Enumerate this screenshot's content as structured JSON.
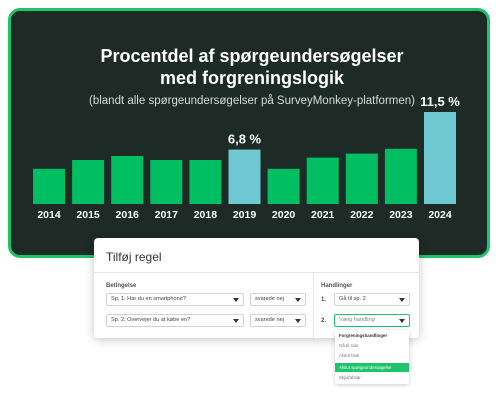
{
  "chart_data": {
    "type": "bar",
    "title_line1": "Procentdel af spørgeundersøgelser",
    "title_line2": "med forgreningslogik",
    "subtitle": "(blandt alle spørgeundersøgelser på SurveyMonkey-platformen)",
    "categories": [
      "2014",
      "2015",
      "2016",
      "2017",
      "2018",
      "2019",
      "2020",
      "2021",
      "2022",
      "2023",
      "2024"
    ],
    "values": [
      4.4,
      5.5,
      6.0,
      5.5,
      5.5,
      6.8,
      4.4,
      5.8,
      6.3,
      6.9,
      11.5
    ],
    "highlighted": [
      false,
      false,
      false,
      false,
      false,
      true,
      false,
      false,
      false,
      false,
      true
    ],
    "data_labels": {
      "2019": "6,8 %",
      "2024": "11,5 %"
    },
    "ylim": [
      0,
      12.5
    ],
    "grid": false,
    "colors": {
      "bar": "#00bf63",
      "highlight": "#6fc9d3",
      "background": "#1e2a26",
      "border": "#1ec36a"
    }
  },
  "rule_panel": {
    "title": "Tilføj regel",
    "conditions_label": "Betingelse",
    "actions_label": "Handlinger",
    "conditions": [
      {
        "question": "Sp. 1. Har du en smartphone?",
        "answer": "svarede nej"
      },
      {
        "question": "Sp. 2. Overvejer du at købe en?",
        "answer": "svarede nej"
      }
    ],
    "actions": [
      {
        "num": "1.",
        "value": "Gå til sp. 2"
      },
      {
        "num": "2.",
        "value": "Vælg handling"
      }
    ],
    "dropdown": {
      "header": "Forgreningshandlinger",
      "items": [
        "Gå til side",
        "Afslut blok",
        "Afslut spørgeundersøgelse",
        "Skjul/afslør"
      ],
      "active_index": 2
    }
  }
}
